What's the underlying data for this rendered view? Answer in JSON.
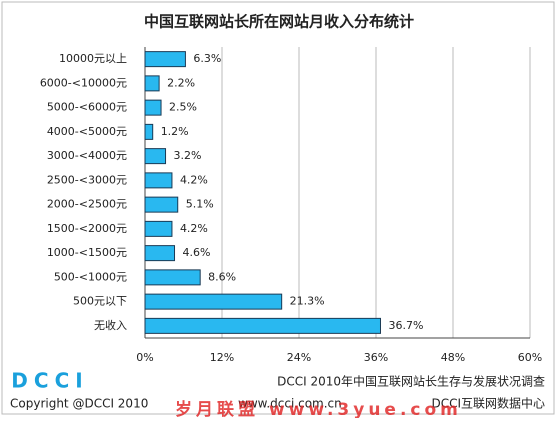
{
  "chart_data": {
    "type": "bar",
    "orientation": "horizontal",
    "title": "中国互联网站长所在网站月收入分布统计",
    "categories": [
      "10000元以上",
      "6000-<10000元",
      "5000-<6000元",
      "4000-<5000元",
      "3000-<4000元",
      "2500-<3000元",
      "2000-<2500元",
      "1500-<2000元",
      "1000-<1500元",
      "500-<1000元",
      "500元以下",
      "无收入"
    ],
    "values": [
      6.3,
      2.2,
      2.5,
      1.2,
      3.2,
      4.2,
      5.1,
      4.2,
      4.6,
      8.6,
      21.3,
      36.7
    ],
    "value_labels": [
      "6.3%",
      "2.2%",
      "2.5%",
      "1.2%",
      "3.2%",
      "4.2%",
      "5.1%",
      "4.2%",
      "4.6%",
      "8.6%",
      "21.3%",
      "36.7%"
    ],
    "color": "#29b8f0",
    "xlim": [
      0,
      60
    ],
    "xticks": [
      {
        "value": 0,
        "label": "0%"
      },
      {
        "value": 12,
        "label": "12%"
      },
      {
        "value": 24,
        "label": "24%"
      },
      {
        "value": 36,
        "label": "36%"
      },
      {
        "value": 48,
        "label": "48%"
      },
      {
        "value": 60,
        "label": "60%"
      }
    ],
    "grid": true
  },
  "footer": {
    "logo": "DCCI",
    "survey": "DCCI 2010年中国互联网站长生存与发展状况调查",
    "copyright": "Copyright @DCCI 2010",
    "url": "www.dcci.com.cn",
    "center": "DCCI互联网数据中心"
  },
  "watermark": "岁月联盟 www.3yue.com"
}
